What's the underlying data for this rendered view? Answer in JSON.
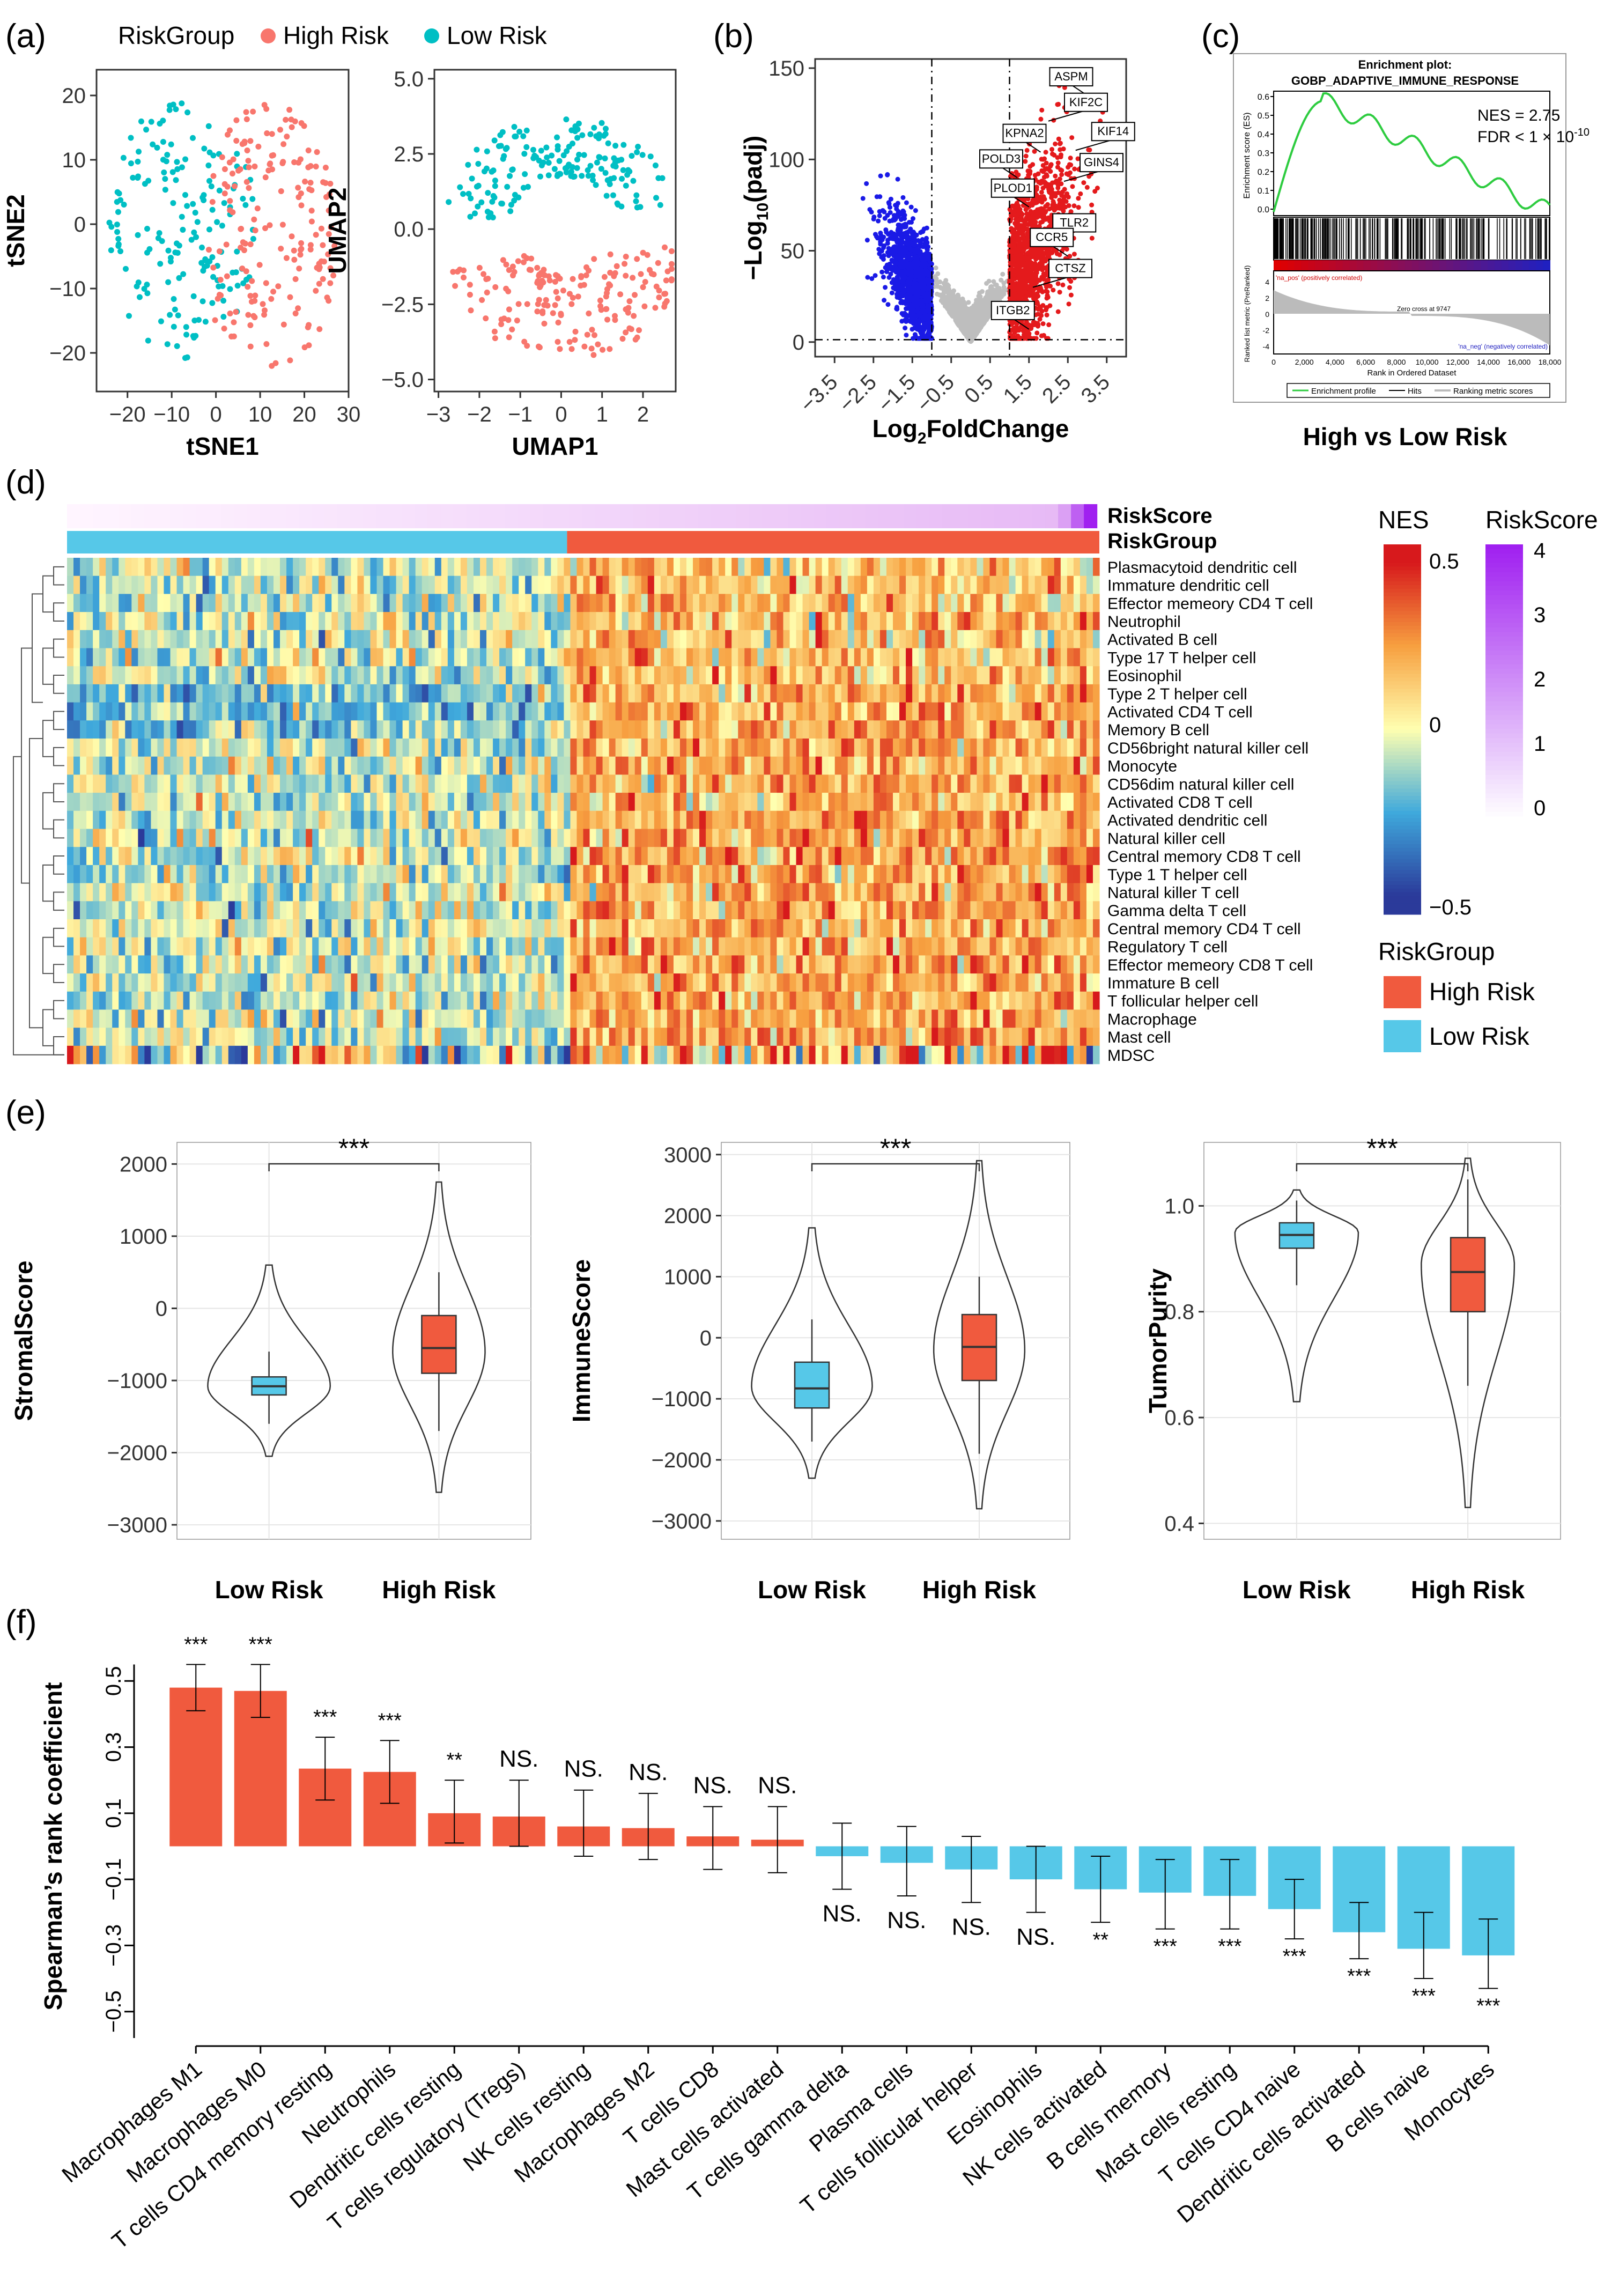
{
  "colors": {
    "high_risk": "#F8766D",
    "low_risk": "#00BFC4",
    "up": "#E41A1C",
    "down": "#1A1AE6",
    "ns": "#BEBEBE",
    "high_box": "#F05A3E",
    "low_box": "#56C8E8",
    "bar_pos": "#F05A3E",
    "bar_neg": "#56C8E8",
    "es_line": "#2ECC40",
    "nes_low": "#2B3A9A",
    "nes_mid": "#FFFFB0",
    "nes_high": "#D7191C",
    "rs_high": "#A020F0"
  },
  "panel_labels": [
    "(a)",
    "(b)",
    "(c)",
    "(d)",
    "(e)",
    "(f)"
  ],
  "panel_a": {
    "legend_title": "RiskGroup",
    "legend_items": [
      "High Risk",
      "Low Risk"
    ],
    "tsne": {
      "xlabel": "tSNE1",
      "ylabel": "tSNE2",
      "xlim": [
        -27,
        30
      ],
      "ylim": [
        -26,
        24
      ],
      "xticks": [
        -20,
        -10,
        0,
        10,
        20,
        30
      ],
      "yticks": [
        -20,
        -10,
        0,
        10,
        20
      ],
      "xtick_labels": [
        "−20",
        "−10",
        "0",
        "10",
        "20",
        "30"
      ],
      "ytick_labels": [
        "−20",
        "−10",
        "0",
        "10",
        "20"
      ]
    },
    "umap": {
      "xlabel": "UMAP1",
      "ylabel": "UMAP2",
      "xlim": [
        -3.1,
        2.8
      ],
      "ylim": [
        -5.4,
        5.3
      ],
      "xticks": [
        -3,
        -2,
        -1,
        0,
        1,
        2
      ],
      "yticks": [
        -5.0,
        -2.5,
        0.0,
        2.5,
        5.0
      ],
      "xtick_labels": [
        "−3",
        "−2",
        "−1",
        "0",
        "1",
        "2"
      ],
      "ytick_labels": [
        "−5.0",
        "−2.5",
        "0.0",
        "2.5",
        "5.0"
      ]
    }
  },
  "panel_b": {
    "type": "scatter",
    "xlabel_base": "Log",
    "xlabel_sub": "2",
    "xlabel_tail": "FoldChange",
    "ylabel_pre": "−Log",
    "ylabel_sub": "10",
    "ylabel_tail": "(padj)",
    "xlim": [
      -4,
      4
    ],
    "ylim": [
      -8,
      155
    ],
    "xticks": [
      -3.5,
      -2.5,
      -1.5,
      -0.5,
      0.5,
      1.5,
      2.5,
      3.5
    ],
    "xtick_labels": [
      "−3.5",
      "−2.5",
      "−1.5",
      "−0.5",
      "0.5",
      "1.5",
      "2.5",
      "3.5"
    ],
    "yticks": [
      0,
      50,
      100,
      150
    ],
    "ytick_labels": [
      "0",
      "50",
      "100",
      "150"
    ],
    "vlines": [
      -1,
      1
    ],
    "hline": 1.3,
    "genes": [
      {
        "label": "ASPM",
        "x": 3.0,
        "y": 135
      },
      {
        "label": "KIF2C",
        "x": 2.0,
        "y": 121
      },
      {
        "label": "KPNA2",
        "x": 1.8,
        "y": 104
      },
      {
        "label": "KIF14",
        "x": 2.7,
        "y": 105
      },
      {
        "label": "POLD3",
        "x": 1.2,
        "y": 90
      },
      {
        "label": "GINS4",
        "x": 2.4,
        "y": 88
      },
      {
        "label": "PLOD1",
        "x": 1.5,
        "y": 74
      },
      {
        "label": "TLR2",
        "x": 1.7,
        "y": 55
      },
      {
        "label": "CCR5",
        "x": 2.5,
        "y": 47
      },
      {
        "label": "CTSZ",
        "x": 1.6,
        "y": 30
      },
      {
        "label": "ITGB2",
        "x": 1.5,
        "y": 7
      }
    ]
  },
  "panel_c": {
    "title_line1": "Enrichment plot:",
    "title_line2": "GOBP_ADAPTIVE_IMMUNE_RESPONSE",
    "nes_text": "NES = 2.75",
    "fdr_text": "FDR < 1 × 10",
    "fdr_exp": "-10",
    "es_ylabel": "Enrichment score (ES)",
    "es_yticks": [
      "0.6",
      "0.5",
      "0.4",
      "0.3",
      "0.2",
      "0.1",
      "0.0"
    ],
    "rank_ylabel": "Ranked list metric (PreRanked)",
    "rank_yticks": [
      "4",
      "2",
      "0",
      "-2",
      "-4"
    ],
    "pos_label": "'na_pos' (positively correlated)",
    "neg_label": "'na_neg' (negatively correlated)",
    "zero_cross": "Zero cross at 9747",
    "xlabel": "Rank in Ordered Dataset",
    "xticks": [
      "0",
      "2,000",
      "4,000",
      "6,000",
      "8,000",
      "10,000",
      "12,000",
      "14,000",
      "16,000",
      "18,000"
    ],
    "legend": [
      "Enrichment profile",
      "Hits",
      "Ranking metric scores"
    ],
    "subtitle": "High vs Low Risk"
  },
  "panel_d": {
    "bar_labels": [
      "RiskScore",
      "RiskGroup"
    ],
    "cell_types": [
      "Plasmacytoid dendritic cell",
      "Immature dendritic cell",
      "Effector memeory CD4 T cell",
      "Neutrophil",
      "Activated B cell",
      "Type 17 T helper cell",
      "Eosinophil",
      "Type 2 T helper cell",
      "Activated CD4 T cell",
      "Memory B cell",
      "CD56bright natural killer cell",
      "Monocyte",
      "CD56dim natural killer cell",
      "Activated CD8 T cell",
      "Activated dendritic cell",
      "Natural killer cell",
      "Central memory CD8 T cell",
      "Type 1 T helper cell",
      "Natural killer T cell",
      "Gamma delta T cell",
      "Central memory CD4 T cell",
      "Regulatory T cell",
      "Effector memeory CD8 T cell",
      "Immature  B cell",
      "T follicular helper cell",
      "Macrophage",
      "Mast cell",
      "MDSC"
    ],
    "nes_legend_title": "NES",
    "nes_legend_ticks": [
      "0.5",
      "0",
      "−0.5"
    ],
    "rs_legend_title": "RiskScore",
    "rs_legend_ticks": [
      "4",
      "3",
      "2",
      "1",
      "0"
    ],
    "group_legend_title": "RiskGroup",
    "group_legend_items": [
      "High Risk",
      "Low Risk"
    ]
  },
  "panel_e": [
    {
      "ylabel": "StromalScore",
      "ylim": [
        -3200,
        2300
      ],
      "yticks": [
        -3000,
        -2000,
        -1000,
        0,
        1000,
        2000
      ],
      "ytick_labels": [
        "−3000",
        "−2000",
        "−1000",
        "0",
        "1000",
        "2000"
      ],
      "sig": "***",
      "groups": [
        {
          "name": "Low Risk",
          "q1": -1200,
          "median": -1080,
          "q3": -950,
          "wlo": -1600,
          "whi": -600,
          "vmin": -2050,
          "vmax": 600,
          "mode": -1080
        },
        {
          "name": "High Risk",
          "q1": -900,
          "median": -550,
          "q3": -100,
          "wlo": -1700,
          "whi": 500,
          "vmin": -2550,
          "vmax": 1750,
          "mode": -600
        }
      ]
    },
    {
      "ylabel": "ImmuneScore",
      "ylim": [
        -3300,
        3200
      ],
      "yticks": [
        -3000,
        -2000,
        -1000,
        0,
        1000,
        2000,
        3000
      ],
      "ytick_labels": [
        "−3000",
        "−2000",
        "−1000",
        "0",
        "1000",
        "2000",
        "3000"
      ],
      "sig": "***",
      "groups": [
        {
          "name": "Low Risk",
          "q1": -1150,
          "median": -830,
          "q3": -400,
          "wlo": -1700,
          "whi": 300,
          "vmin": -2300,
          "vmax": 1800,
          "mode": -800
        },
        {
          "name": "High Risk",
          "q1": -700,
          "median": -150,
          "q3": 380,
          "wlo": -1900,
          "whi": 1000,
          "vmin": -2800,
          "vmax": 2900,
          "mode": -200
        }
      ]
    },
    {
      "ylabel": "TumorPurity",
      "ylim": [
        0.37,
        1.12
      ],
      "yticks": [
        0.4,
        0.6,
        0.8,
        1.0
      ],
      "ytick_labels": [
        "0.4",
        "0.6",
        "0.8",
        "1.0"
      ],
      "sig": "***",
      "groups": [
        {
          "name": "Low Risk",
          "q1": 0.92,
          "median": 0.945,
          "q3": 0.968,
          "wlo": 0.85,
          "whi": 1.01,
          "vmin": 0.63,
          "vmax": 1.03,
          "mode": 0.95
        },
        {
          "name": "High Risk",
          "q1": 0.8,
          "median": 0.875,
          "q3": 0.94,
          "wlo": 0.66,
          "whi": 1.05,
          "vmin": 0.43,
          "vmax": 1.09,
          "mode": 0.89
        }
      ]
    }
  ],
  "chart_data": {
    "type": "bar",
    "title": "",
    "xlabel": "",
    "ylabel": "Spearman’s rank coefficient",
    "ylim": [
      -0.58,
      0.58
    ],
    "yticks": [
      -0.5,
      -0.3,
      -0.1,
      0.1,
      0.3,
      0.5
    ],
    "ytick_labels": [
      "−0.5",
      "−0.3",
      "−0.1",
      "0.1",
      "0.3",
      "0.5"
    ],
    "categories": [
      "Macrophages M1",
      "Macrophages M0",
      "T cells CD4 memory resting",
      "Neutrophils",
      "Dendritic cells resting",
      "T cells regulatory (Tregs)",
      "NK cells resting",
      "Macrophages M2",
      "T cells CD8",
      "Mast cells activated",
      "T cells gamma delta",
      "Plasma cells",
      "T cells follicular helper",
      "Eosinophils",
      "NK cells activated",
      "B cells memory",
      "Mast cells resting",
      "T cells CD4 naive",
      "Dendritic cells activated",
      "B cells naive",
      "Monocytes"
    ],
    "values": [
      0.48,
      0.47,
      0.235,
      0.225,
      0.1,
      0.09,
      0.06,
      0.055,
      0.03,
      0.02,
      -0.03,
      -0.05,
      -0.07,
      -0.1,
      -0.13,
      -0.14,
      -0.15,
      -0.19,
      -0.26,
      -0.31,
      -0.33
    ],
    "err_lo": [
      0.41,
      0.39,
      0.14,
      0.13,
      0.01,
      0.0,
      -0.03,
      -0.04,
      -0.07,
      -0.08,
      -0.13,
      -0.15,
      -0.17,
      -0.2,
      -0.23,
      -0.25,
      -0.25,
      -0.28,
      -0.34,
      -0.4,
      -0.43
    ],
    "err_hi": [
      0.55,
      0.55,
      0.33,
      0.32,
      0.2,
      0.2,
      0.17,
      0.16,
      0.12,
      0.12,
      0.07,
      0.06,
      0.03,
      0.0,
      -0.03,
      -0.04,
      -0.04,
      -0.1,
      -0.17,
      -0.2,
      -0.22
    ],
    "significance": [
      "***",
      "***",
      "***",
      "***",
      "**",
      "NS.",
      "NS.",
      "NS.",
      "NS.",
      "NS.",
      "NS.",
      "NS.",
      "NS.",
      "NS.",
      "**",
      "***",
      "***",
      "***",
      "***",
      "***",
      "***"
    ]
  }
}
